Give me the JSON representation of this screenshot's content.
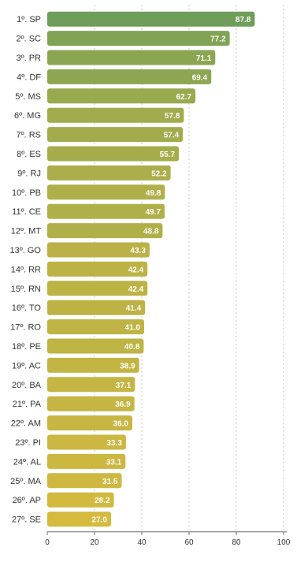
{
  "chart_data": {
    "type": "bar",
    "orientation": "horizontal",
    "categories": [
      "1º. SP",
      "2º. SC",
      "3º. PR",
      "4º. DF",
      "5º. MS",
      "6º. MG",
      "7º. RS",
      "8º. ES",
      "9º. RJ",
      "10º. PB",
      "11º. CE",
      "12º. MT",
      "13º. GO",
      "14º. RR",
      "15º. RN",
      "16º. TO",
      "17º. RO",
      "18º. PE",
      "19º. AC",
      "20º. BA",
      "21º. PA",
      "22º. AM",
      "23º. PI",
      "24º. AL",
      "25º. MA",
      "26º. AP",
      "27º. SE"
    ],
    "values": [
      87.8,
      77.2,
      71.1,
      69.4,
      62.7,
      57.8,
      57.4,
      55.7,
      52.2,
      49.8,
      49.7,
      48.8,
      43.3,
      42.4,
      42.4,
      41.4,
      41.0,
      40.8,
      38.9,
      37.1,
      36.9,
      36.0,
      33.3,
      33.1,
      31.5,
      28.2,
      27.0
    ],
    "value_labels": [
      "87.8",
      "77.2",
      "71.1",
      "69.4",
      "62.7",
      "57.8",
      "57.4",
      "55.7",
      "52.2",
      "49.8",
      "49.7",
      "48.8",
      "43.3",
      "42.4",
      "42.4",
      "41.4",
      "41.0",
      "40.8",
      "38.9",
      "37.1",
      "36.9",
      "36.0",
      "33.3",
      "33.1",
      "31.5",
      "28.2",
      "27.0"
    ],
    "x_ticks": [
      0,
      20,
      40,
      60,
      80,
      100
    ],
    "xlim": [
      0,
      100
    ],
    "grid": true,
    "colors": {
      "high": "#6e9e5a",
      "low": "#d6ba3e",
      "axis": "#6a6a6a",
      "grid": "#c8c8c8"
    }
  }
}
